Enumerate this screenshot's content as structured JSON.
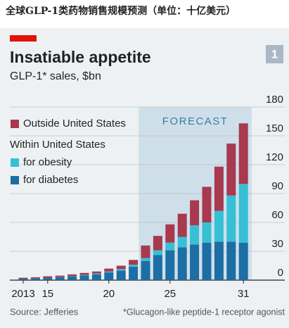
{
  "caption": "全球GLP-1类药物销售规模预测（单位：十亿美元）",
  "chart_data": {
    "type": "stacked_bar",
    "title": "Insatiable appetite",
    "subtitle": "GLP-1* sales, $bn",
    "badge": "1",
    "annotation": "FORECAST",
    "legend_group_title": "Within United States",
    "source": "Source: Jefferies",
    "footnote": "*Glucagon-like peptide-1 receptor agonist",
    "categories": [
      "2013",
      null,
      "15",
      null,
      null,
      null,
      null,
      "20",
      null,
      null,
      null,
      null,
      "25",
      null,
      null,
      null,
      null,
      null,
      "31"
    ],
    "series": [
      {
        "name": "for diabetes",
        "color": "#1c6ea4",
        "values": [
          1.5,
          2,
          2.5,
          3,
          4,
          5,
          6,
          8,
          10,
          14,
          20,
          26,
          31,
          34,
          37,
          39,
          40,
          40,
          39
        ]
      },
      {
        "name": "for obesity",
        "color": "#36c0d4",
        "values": [
          0,
          0,
          0,
          0.2,
          0.3,
          0.5,
          0.8,
          1,
          1.5,
          2,
          3,
          5,
          8,
          11,
          20,
          21,
          32,
          48,
          61
        ]
      },
      {
        "name": "Outside United States",
        "color": "#a8394f",
        "values": [
          1,
          1,
          1.5,
          1.5,
          1.7,
          2,
          2.2,
          3,
          3.5,
          5,
          13,
          15,
          19,
          24,
          26,
          37,
          46,
          54,
          63
        ]
      }
    ],
    "ylim": [
      0,
      180
    ],
    "yticks": [
      0,
      30,
      60,
      90,
      120,
      150,
      180
    ],
    "grid": true
  }
}
